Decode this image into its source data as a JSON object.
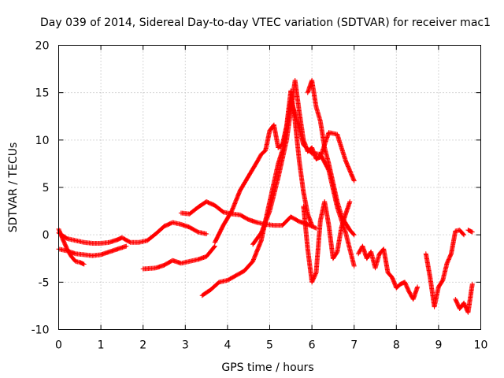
{
  "chart_data": {
    "type": "scatter",
    "title": "Day 039 of 2014, Sidereal Day-to-day VTEC variation (SDTVAR) for receiver mac1",
    "xlabel": "GPS time / hours",
    "ylabel": "SDTVAR / TECUs",
    "xlim": [
      0,
      10
    ],
    "ylim": [
      -10,
      20
    ],
    "xticks": [
      "0",
      "1",
      "2",
      "3",
      "4",
      "5",
      "6",
      "7",
      "8",
      "9",
      "10"
    ],
    "yticks": [
      "-10",
      "-5",
      "0",
      "5",
      "10",
      "15",
      "20"
    ],
    "grid": true,
    "marker": "+",
    "color": "#ff0000",
    "series": [
      {
        "name": "trace-1",
        "x": [
          0.0,
          0.2,
          0.4,
          0.6,
          0.8,
          1.0,
          1.2,
          1.4,
          1.5,
          1.7,
          1.9,
          2.1,
          2.3,
          2.5,
          2.7,
          2.9,
          3.1,
          3.3,
          3.5
        ],
        "y": [
          0.2,
          -0.4,
          -0.6,
          -0.8,
          -0.9,
          -0.9,
          -0.8,
          -0.5,
          -0.3,
          -0.8,
          -0.8,
          -0.6,
          0.1,
          0.9,
          1.3,
          1.1,
          0.8,
          0.3,
          0.1
        ]
      },
      {
        "name": "trace-2",
        "x": [
          0.0,
          0.1,
          0.2,
          0.3,
          0.4,
          0.5,
          0.6
        ],
        "y": [
          0.6,
          -0.5,
          -1.5,
          -2.3,
          -2.8,
          -2.9,
          -3.1
        ]
      },
      {
        "name": "trace-3",
        "x": [
          0.0,
          0.2,
          0.4,
          0.6,
          0.8,
          1.0,
          1.2,
          1.4,
          1.6
        ],
        "y": [
          -1.5,
          -1.7,
          -2.0,
          -2.1,
          -2.2,
          -2.1,
          -1.8,
          -1.5,
          -1.2
        ]
      },
      {
        "name": "trace-4",
        "x": [
          2.0,
          2.3,
          2.5,
          2.7,
          2.9,
          3.1,
          3.3,
          3.5,
          3.7
        ],
        "y": [
          -3.6,
          -3.5,
          -3.2,
          -2.7,
          -3.0,
          -2.8,
          -2.6,
          -2.3,
          -1.2
        ]
      },
      {
        "name": "trace-5",
        "x": [
          2.9,
          3.1,
          3.3,
          3.5,
          3.7,
          3.9,
          4.1,
          4.3,
          4.5,
          4.7,
          4.9,
          5.1,
          5.3,
          5.5,
          5.7,
          5.9,
          6.1
        ],
        "y": [
          2.3,
          2.2,
          2.9,
          3.5,
          3.1,
          2.4,
          2.2,
          2.1,
          1.6,
          1.3,
          1.1,
          1.0,
          1.0,
          1.9,
          1.4,
          1.1,
          0.7
        ]
      },
      {
        "name": "trace-6",
        "x": [
          3.4,
          3.6,
          3.8,
          4.0,
          4.2,
          4.4,
          4.6,
          4.8,
          4.9,
          5.0,
          5.1,
          5.2,
          5.3,
          5.4,
          5.5,
          5.6,
          5.8,
          6.0,
          6.2,
          6.4,
          6.6,
          6.8,
          7.0
        ],
        "y": [
          -6.4,
          -5.8,
          -5.0,
          -4.8,
          -4.3,
          -3.8,
          -2.8,
          -0.6,
          1.5,
          3.5,
          5.5,
          7.5,
          8.9,
          11.3,
          14.2,
          12.8,
          9.5,
          8.6,
          8.5,
          6.8,
          2.9,
          0.2,
          -3.3
        ]
      },
      {
        "name": "trace-7",
        "x": [
          3.7,
          3.9,
          4.1,
          4.3,
          4.5,
          4.7,
          4.8,
          4.9,
          5.0,
          5.1,
          5.2,
          5.3,
          5.4,
          5.5,
          5.6,
          5.7,
          5.8,
          5.9,
          6.0
        ],
        "y": [
          -0.8,
          1.0,
          2.5,
          4.7,
          6.2,
          7.7,
          8.5,
          8.9,
          11.0,
          11.6,
          9.2,
          9.5,
          11.5,
          15.2,
          12.0,
          7.8,
          4.5,
          2.2,
          1.0
        ]
      },
      {
        "name": "trace-8",
        "x": [
          4.6,
          4.8,
          5.0,
          5.2,
          5.4,
          5.6,
          5.7,
          5.8,
          5.9,
          6.0,
          6.1,
          6.2,
          6.4,
          6.6,
          6.8,
          7.0
        ],
        "y": [
          -1.0,
          0.2,
          2.5,
          6.0,
          10.0,
          16.3,
          13.0,
          10.0,
          8.8,
          9.2,
          8.0,
          8.2,
          10.8,
          10.6,
          7.8,
          5.7
        ]
      },
      {
        "name": "trace-9",
        "x": [
          5.8,
          5.9,
          6.0,
          6.1,
          6.2,
          6.3,
          6.4,
          6.5,
          6.6,
          6.7,
          6.8,
          6.9
        ],
        "y": [
          3.0,
          -1.5,
          -5.0,
          -4.0,
          1.5,
          3.5,
          1.0,
          -2.5,
          -1.8,
          0.8,
          2.2,
          3.5
        ]
      },
      {
        "name": "trace-10",
        "x": [
          5.9,
          6.0,
          6.1,
          6.2,
          6.3,
          6.4,
          6.5,
          6.6,
          6.7,
          6.8,
          6.9,
          7.0
        ],
        "y": [
          15.0,
          16.3,
          13.5,
          12.0,
          9.2,
          7.5,
          5.5,
          3.5,
          2.0,
          1.2,
          0.5,
          0.0
        ]
      },
      {
        "name": "trace-11",
        "x": [
          7.1,
          7.2,
          7.3,
          7.4,
          7.5,
          7.6,
          7.7,
          7.8,
          7.9,
          8.0,
          8.1,
          8.2,
          8.3,
          8.4,
          8.5
        ],
        "y": [
          -2.0,
          -1.2,
          -2.5,
          -1.8,
          -3.5,
          -2.0,
          -1.5,
          -4.0,
          -4.5,
          -5.6,
          -5.2,
          -5.0,
          -6.0,
          -6.8,
          -5.5
        ]
      },
      {
        "name": "trace-12",
        "x": [
          8.7,
          8.8,
          8.9,
          9.0,
          9.1,
          9.2,
          9.3,
          9.4,
          9.5,
          9.6
        ],
        "y": [
          -2.0,
          -4.5,
          -7.6,
          -5.5,
          -4.8,
          -3.0,
          -2.0,
          0.4,
          0.5,
          0.0
        ]
      },
      {
        "name": "trace-13",
        "x": [
          9.4,
          9.5,
          9.6,
          9.7,
          9.8
        ],
        "y": [
          -6.8,
          -7.8,
          -7.2,
          -8.2,
          -5.2
        ]
      },
      {
        "name": "trace-14",
        "x": [
          9.7,
          9.8
        ],
        "y": [
          0.5,
          0.3
        ]
      }
    ]
  }
}
